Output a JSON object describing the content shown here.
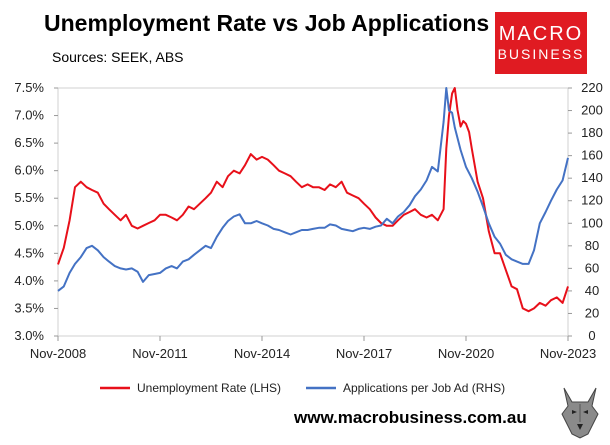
{
  "title": "Unemployment Rate vs Job Applications",
  "subtitle": "Sources: SEEK, ABS",
  "logo": {
    "line1": "MACRO",
    "line2": "BUSINESS",
    "color": "#e01b22"
  },
  "footer": "www.macrobusiness.com.au",
  "chart_data": {
    "type": "line",
    "x_ticks": [
      "Nov-2008",
      "Nov-2011",
      "Nov-2014",
      "Nov-2017",
      "Nov-2020",
      "Nov-2023"
    ],
    "x_range": [
      2008.83,
      2023.83
    ],
    "y_left": {
      "ticks": [
        "3.0%",
        "3.5%",
        "4.0%",
        "4.5%",
        "5.0%",
        "5.5%",
        "6.0%",
        "6.5%",
        "7.0%",
        "7.5%"
      ],
      "range": [
        3.0,
        7.5
      ]
    },
    "y_right": {
      "ticks": [
        "0",
        "20",
        "40",
        "60",
        "80",
        "100",
        "120",
        "140",
        "160",
        "180",
        "200",
        "220"
      ],
      "range": [
        0,
        220
      ]
    },
    "series": [
      {
        "name": "Unemployment Rate (LHS)",
        "axis": "left",
        "color": "#e8101a",
        "points": [
          [
            2008.83,
            4.3
          ],
          [
            2009.0,
            4.6
          ],
          [
            2009.17,
            5.1
          ],
          [
            2009.33,
            5.7
          ],
          [
            2009.5,
            5.8
          ],
          [
            2009.67,
            5.7
          ],
          [
            2009.83,
            5.65
          ],
          [
            2010.0,
            5.6
          ],
          [
            2010.17,
            5.4
          ],
          [
            2010.33,
            5.3
          ],
          [
            2010.5,
            5.2
          ],
          [
            2010.67,
            5.1
          ],
          [
            2010.83,
            5.2
          ],
          [
            2011.0,
            5.0
          ],
          [
            2011.17,
            4.95
          ],
          [
            2011.33,
            5.0
          ],
          [
            2011.5,
            5.05
          ],
          [
            2011.67,
            5.1
          ],
          [
            2011.83,
            5.2
          ],
          [
            2012.0,
            5.2
          ],
          [
            2012.17,
            5.15
          ],
          [
            2012.33,
            5.1
          ],
          [
            2012.5,
            5.2
          ],
          [
            2012.67,
            5.35
          ],
          [
            2012.83,
            5.3
          ],
          [
            2013.0,
            5.4
          ],
          [
            2013.17,
            5.5
          ],
          [
            2013.33,
            5.6
          ],
          [
            2013.5,
            5.8
          ],
          [
            2013.67,
            5.7
          ],
          [
            2013.83,
            5.9
          ],
          [
            2014.0,
            6.0
          ],
          [
            2014.17,
            5.95
          ],
          [
            2014.33,
            6.1
          ],
          [
            2014.5,
            6.3
          ],
          [
            2014.67,
            6.2
          ],
          [
            2014.83,
            6.25
          ],
          [
            2015.0,
            6.2
          ],
          [
            2015.17,
            6.1
          ],
          [
            2015.33,
            6.0
          ],
          [
            2015.5,
            5.95
          ],
          [
            2015.67,
            5.9
          ],
          [
            2015.83,
            5.8
          ],
          [
            2016.0,
            5.7
          ],
          [
            2016.17,
            5.75
          ],
          [
            2016.33,
            5.7
          ],
          [
            2016.5,
            5.7
          ],
          [
            2016.67,
            5.65
          ],
          [
            2016.83,
            5.75
          ],
          [
            2017.0,
            5.7
          ],
          [
            2017.17,
            5.8
          ],
          [
            2017.33,
            5.6
          ],
          [
            2017.5,
            5.55
          ],
          [
            2017.67,
            5.5
          ],
          [
            2017.83,
            5.4
          ],
          [
            2018.0,
            5.3
          ],
          [
            2018.17,
            5.15
          ],
          [
            2018.33,
            5.05
          ],
          [
            2018.5,
            5.0
          ],
          [
            2018.67,
            5.0
          ],
          [
            2018.83,
            5.1
          ],
          [
            2019.0,
            5.2
          ],
          [
            2019.17,
            5.25
          ],
          [
            2019.33,
            5.3
          ],
          [
            2019.5,
            5.2
          ],
          [
            2019.67,
            5.15
          ],
          [
            2019.83,
            5.2
          ],
          [
            2020.0,
            5.1
          ],
          [
            2020.17,
            5.3
          ],
          [
            2020.25,
            6.4
          ],
          [
            2020.33,
            7.0
          ],
          [
            2020.42,
            7.4
          ],
          [
            2020.5,
            7.5
          ],
          [
            2020.58,
            7.1
          ],
          [
            2020.67,
            6.8
          ],
          [
            2020.75,
            6.9
          ],
          [
            2020.83,
            6.85
          ],
          [
            2020.92,
            6.7
          ],
          [
            2021.0,
            6.4
          ],
          [
            2021.17,
            5.8
          ],
          [
            2021.33,
            5.5
          ],
          [
            2021.5,
            4.9
          ],
          [
            2021.67,
            4.5
          ],
          [
            2021.83,
            4.5
          ],
          [
            2022.0,
            4.2
          ],
          [
            2022.17,
            3.9
          ],
          [
            2022.33,
            3.85
          ],
          [
            2022.5,
            3.5
          ],
          [
            2022.67,
            3.45
          ],
          [
            2022.83,
            3.5
          ],
          [
            2023.0,
            3.6
          ],
          [
            2023.17,
            3.55
          ],
          [
            2023.33,
            3.65
          ],
          [
            2023.5,
            3.7
          ],
          [
            2023.67,
            3.6
          ],
          [
            2023.83,
            3.9
          ]
        ]
      },
      {
        "name": "Applications per Job Ad (RHS)",
        "axis": "right",
        "color": "#4472c4",
        "points": [
          [
            2008.83,
            40
          ],
          [
            2009.0,
            44
          ],
          [
            2009.17,
            56
          ],
          [
            2009.33,
            64
          ],
          [
            2009.5,
            70
          ],
          [
            2009.67,
            78
          ],
          [
            2009.83,
            80
          ],
          [
            2010.0,
            76
          ],
          [
            2010.17,
            70
          ],
          [
            2010.33,
            66
          ],
          [
            2010.5,
            62
          ],
          [
            2010.67,
            60
          ],
          [
            2010.83,
            59
          ],
          [
            2011.0,
            60
          ],
          [
            2011.17,
            57
          ],
          [
            2011.33,
            48
          ],
          [
            2011.5,
            54
          ],
          [
            2011.67,
            55
          ],
          [
            2011.83,
            56
          ],
          [
            2012.0,
            60
          ],
          [
            2012.17,
            62
          ],
          [
            2012.33,
            60
          ],
          [
            2012.5,
            66
          ],
          [
            2012.67,
            68
          ],
          [
            2012.83,
            72
          ],
          [
            2013.0,
            76
          ],
          [
            2013.17,
            80
          ],
          [
            2013.33,
            78
          ],
          [
            2013.5,
            88
          ],
          [
            2013.67,
            96
          ],
          [
            2013.83,
            102
          ],
          [
            2014.0,
            106
          ],
          [
            2014.17,
            108
          ],
          [
            2014.33,
            100
          ],
          [
            2014.5,
            100
          ],
          [
            2014.67,
            102
          ],
          [
            2014.83,
            100
          ],
          [
            2015.0,
            98
          ],
          [
            2015.17,
            95
          ],
          [
            2015.33,
            94
          ],
          [
            2015.5,
            92
          ],
          [
            2015.67,
            90
          ],
          [
            2015.83,
            92
          ],
          [
            2016.0,
            94
          ],
          [
            2016.17,
            94
          ],
          [
            2016.33,
            95
          ],
          [
            2016.5,
            96
          ],
          [
            2016.67,
            96
          ],
          [
            2016.83,
            99
          ],
          [
            2017.0,
            98
          ],
          [
            2017.17,
            95
          ],
          [
            2017.33,
            94
          ],
          [
            2017.5,
            93
          ],
          [
            2017.67,
            95
          ],
          [
            2017.83,
            96
          ],
          [
            2018.0,
            95
          ],
          [
            2018.17,
            97
          ],
          [
            2018.33,
            98
          ],
          [
            2018.5,
            104
          ],
          [
            2018.67,
            100
          ],
          [
            2018.83,
            106
          ],
          [
            2019.0,
            110
          ],
          [
            2019.17,
            116
          ],
          [
            2019.33,
            124
          ],
          [
            2019.5,
            130
          ],
          [
            2019.67,
            138
          ],
          [
            2019.83,
            150
          ],
          [
            2020.0,
            146
          ],
          [
            2020.17,
            190
          ],
          [
            2020.25,
            220
          ],
          [
            2020.33,
            200
          ],
          [
            2020.42,
            198
          ],
          [
            2020.5,
            185
          ],
          [
            2020.67,
            165
          ],
          [
            2020.83,
            150
          ],
          [
            2021.0,
            140
          ],
          [
            2021.17,
            128
          ],
          [
            2021.33,
            115
          ],
          [
            2021.5,
            100
          ],
          [
            2021.67,
            88
          ],
          [
            2021.83,
            82
          ],
          [
            2022.0,
            72
          ],
          [
            2022.17,
            68
          ],
          [
            2022.33,
            66
          ],
          [
            2022.5,
            64
          ],
          [
            2022.67,
            64
          ],
          [
            2022.83,
            76
          ],
          [
            2023.0,
            100
          ],
          [
            2023.17,
            110
          ],
          [
            2023.33,
            120
          ],
          [
            2023.5,
            130
          ],
          [
            2023.67,
            138
          ],
          [
            2023.83,
            158
          ]
        ]
      }
    ],
    "legend_position": "bottom",
    "grid": false
  }
}
